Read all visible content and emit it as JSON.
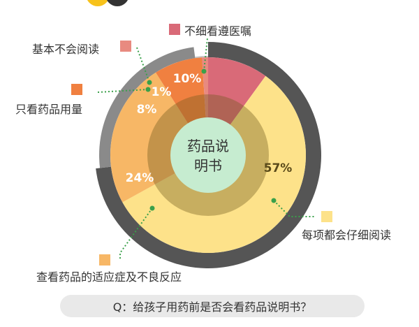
{
  "chart_data": {
    "type": "pie",
    "center_label_line1": "药品说",
    "center_label_line2": "明书",
    "slices": [
      {
        "label": "不细看遵医嘱",
        "value": 10,
        "display": "10%",
        "color": "#d96a78"
      },
      {
        "label": "每项都会仔细阅读",
        "value": 57,
        "display": "57%",
        "color": "#fde28a"
      },
      {
        "label": "查看药品的适应症及不良反应",
        "value": 24,
        "display": "24%",
        "color": "#f7b766"
      },
      {
        "label": "只看药品用量",
        "value": 8,
        "display": "8%",
        "color": "#f08040"
      },
      {
        "label": "基本不会阅读",
        "value": 1,
        "display": "1%",
        "color": "#e88a80"
      }
    ],
    "outer_ring_colors": [
      "#555555",
      "#8a8a8a",
      "#c2c2c2"
    ],
    "leader_line_color": "#3aa04a"
  },
  "question": "Q：给孩子用药前是否会看药品说明书？"
}
